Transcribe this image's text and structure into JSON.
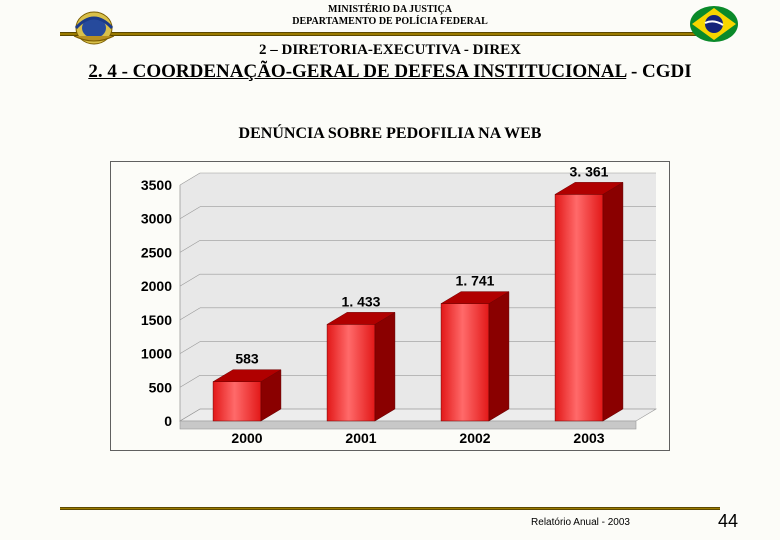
{
  "header": {
    "ministry": "MINISTÉRIO DA JUSTIÇA",
    "department": "DEPARTAMENTO DE POLÍCIA FEDERAL"
  },
  "section": {
    "line1": "2 – DIRETORIA-EXECUTIVA - DIREX",
    "line2_underlined": "2. 4 - COORDENAÇÃO-GERAL DE DEFESA INSTITUCIONAL",
    "line2_suffix": " - CGDI"
  },
  "chart": {
    "title": "DENÚNCIA SOBRE PEDOFILIA NA WEB",
    "type": "bar-3d",
    "categories": [
      "2000",
      "2001",
      "2002",
      "2003"
    ],
    "values": [
      583,
      1433,
      1741,
      3361
    ],
    "value_labels": [
      "583",
      "1. 433",
      "1. 741",
      "3. 361"
    ],
    "ylim": [
      0,
      3500
    ],
    "ytick_step": 500,
    "yticks": [
      "0",
      "500",
      "1000",
      "1500",
      "2000",
      "2500",
      "3000",
      "3500"
    ],
    "bar_face_color": "#e21818",
    "bar_face_gradient_light": "#ff6a6a",
    "bar_top_color": "#b00000",
    "bar_side_color": "#8a0000",
    "floor_color": "#c8c8c8",
    "floor_top_color": "#ededed",
    "wall_color": "#e8e8e8",
    "grid_color": "#9a9a9a",
    "axis_font_size": 14,
    "axis_font_weight": "bold",
    "value_font_size": 14,
    "value_font_weight": "bold",
    "border_color": "#606060",
    "bar_width_ratio": 0.42,
    "depth_dx": 20,
    "depth_dy": -12
  },
  "footer": {
    "report": "Relatório Anual - 2003",
    "page": "44"
  },
  "colors": {
    "rule": "#9a7a00",
    "background": "#fcfcf8"
  }
}
